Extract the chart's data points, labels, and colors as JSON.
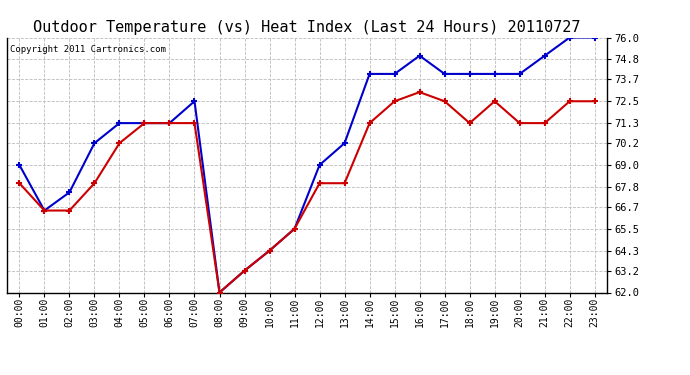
{
  "title": "Outdoor Temperature (vs) Heat Index (Last 24 Hours) 20110727",
  "copyright": "Copyright 2011 Cartronics.com",
  "x_labels": [
    "00:00",
    "01:00",
    "02:00",
    "03:00",
    "04:00",
    "05:00",
    "06:00",
    "07:00",
    "08:00",
    "09:00",
    "10:00",
    "11:00",
    "12:00",
    "13:00",
    "14:00",
    "15:00",
    "16:00",
    "17:00",
    "18:00",
    "19:00",
    "20:00",
    "21:00",
    "22:00",
    "23:00"
  ],
  "temp_blue": [
    69.0,
    66.5,
    67.5,
    70.2,
    71.3,
    71.3,
    71.3,
    72.5,
    62.0,
    63.2,
    64.3,
    65.5,
    69.0,
    70.2,
    74.0,
    74.0,
    75.0,
    74.0,
    74.0,
    74.0,
    74.0,
    75.0,
    76.0,
    76.0
  ],
  "heat_red": [
    68.0,
    66.5,
    66.5,
    68.0,
    70.2,
    71.3,
    71.3,
    71.3,
    62.0,
    63.2,
    64.3,
    65.5,
    68.0,
    68.0,
    71.3,
    72.5,
    73.0,
    72.5,
    71.3,
    72.5,
    71.3,
    71.3,
    72.5,
    72.5
  ],
  "ylim": [
    62.0,
    76.0
  ],
  "yticks": [
    62.0,
    63.2,
    64.3,
    65.5,
    66.7,
    67.8,
    69.0,
    70.2,
    71.3,
    72.5,
    73.7,
    74.8,
    76.0
  ],
  "blue_color": "#0000cc",
  "red_color": "#cc0000",
  "bg_color": "#ffffff",
  "grid_color": "#bbbbbb",
  "title_fontsize": 11,
  "copyright_fontsize": 6.5,
  "tick_fontsize": 7,
  "ytick_fontsize": 7.5
}
